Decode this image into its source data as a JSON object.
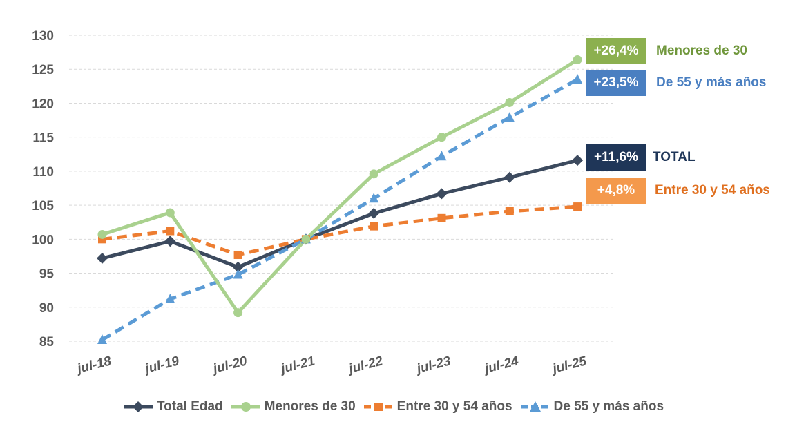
{
  "chart_data": {
    "type": "line",
    "categories": [
      "jul-18",
      "jul-19",
      "jul-20",
      "jul-21",
      "jul-22",
      "jul-23",
      "jul-24",
      "jul-25"
    ],
    "ylim": [
      85,
      130
    ],
    "yticks": [
      85,
      90,
      95,
      100,
      105,
      110,
      115,
      120,
      125,
      130
    ],
    "grid": true,
    "legend_position": "bottom",
    "series": [
      {
        "name": "Total Edad",
        "color": "#3c4a5e",
        "marker": "diamond",
        "dash": "solid",
        "values": [
          97.2,
          99.7,
          95.9,
          100,
          103.8,
          106.7,
          109.1,
          111.6
        ]
      },
      {
        "name": "Menores de 30",
        "color": "#a9d18e",
        "marker": "circle",
        "dash": "solid",
        "values": [
          100.7,
          103.9,
          89.2,
          100,
          109.6,
          115.0,
          120.1,
          126.4
        ]
      },
      {
        "name": "Entre 30 y 54 años",
        "color": "#ed7d31",
        "marker": "square",
        "dash": "dashed",
        "values": [
          100.0,
          101.2,
          97.7,
          100,
          101.9,
          103.1,
          104.1,
          104.8
        ]
      },
      {
        "name": "De 55 y más años",
        "color": "#5b9bd5",
        "marker": "triangle",
        "dash": "dashed",
        "values": [
          85.2,
          91.2,
          94.8,
          100,
          106.0,
          112.2,
          117.9,
          123.5
        ]
      }
    ],
    "annotations": [
      {
        "badge": "+26,4%",
        "label": "Menores de 30",
        "badge_color": "#8cb04f",
        "label_color": "#70973c"
      },
      {
        "badge": "+23,5%",
        "label": "De 55 y más años",
        "badge_color": "#4a7fc1",
        "label_color": "#4a7fc1"
      },
      {
        "badge": "+11,6%",
        "label": "TOTAL",
        "badge_color": "#1f3658",
        "label_color": "#1f3658"
      },
      {
        "badge": "+4,8%",
        "label": "Entre 30 y 54 años",
        "badge_color": "#f4994c",
        "label_color": "#e07020"
      }
    ]
  }
}
